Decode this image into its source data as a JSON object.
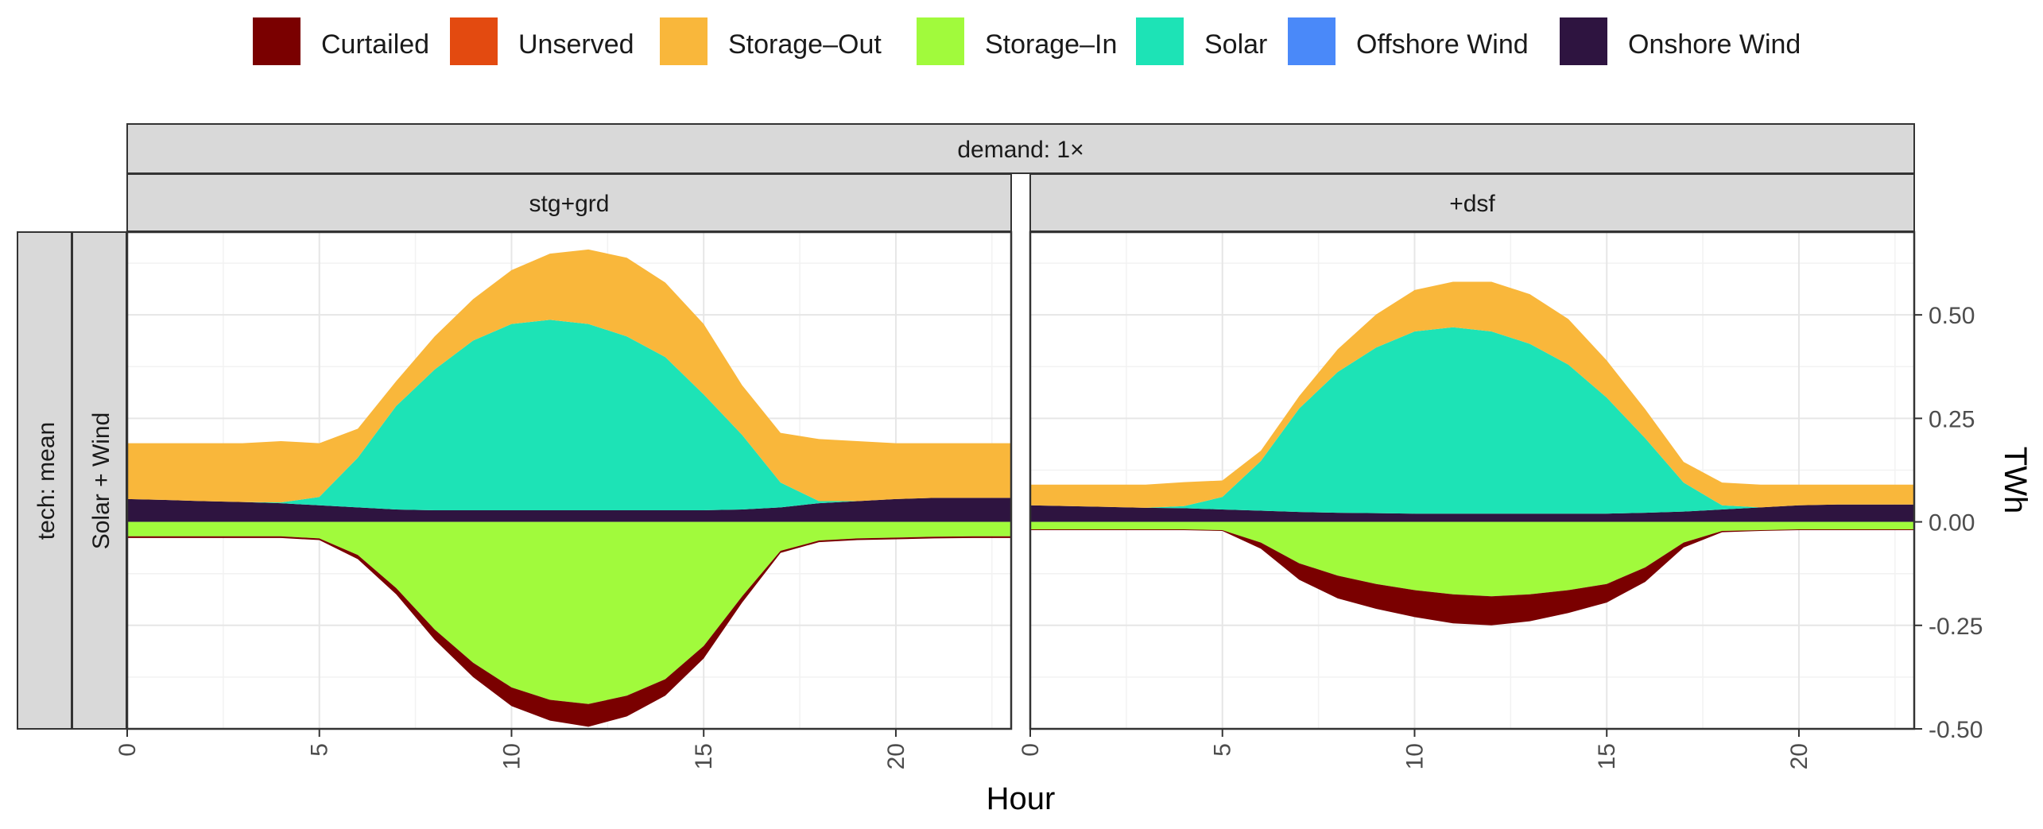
{
  "chart_data": {
    "type": "area",
    "title": "",
    "xlabel": "Hour",
    "ylabel": "TWh",
    "xlim": [
      0,
      23
    ],
    "ylim": [
      -0.5,
      0.7
    ],
    "x_ticks": [
      0,
      5,
      10,
      15,
      20
    ],
    "x_tick_labels": [
      "0",
      "5",
      "10",
      "15",
      "20"
    ],
    "y_ticks": [
      -0.5,
      -0.25,
      0,
      0.25,
      0.5
    ],
    "y_tick_labels": [
      "-0.50",
      "-0.25",
      "0.00",
      "0.25",
      "0.50"
    ],
    "grid": true,
    "legend_position": "top",
    "legend": [
      {
        "name": "Curtailed",
        "color": "#7a0000"
      },
      {
        "name": "Unserved",
        "color": "#e34a10"
      },
      {
        "name": "Storage–Out",
        "color": "#f9b73b"
      },
      {
        "name": "Storage–In",
        "color": "#a1fa3c"
      },
      {
        "name": "Solar",
        "color": "#1de3b6"
      },
      {
        "name": "Offshore Wind",
        "color": "#4a89f9"
      },
      {
        "name": "Onshore Wind",
        "color": "#2e1440"
      }
    ],
    "facet_top_strip": "demand: 1×",
    "facet_left_strip_outer": "tech: mean",
    "facet_left_strip_inner": "Solar + Wind",
    "x": [
      0,
      1,
      2,
      3,
      4,
      5,
      6,
      7,
      8,
      9,
      10,
      11,
      12,
      13,
      14,
      15,
      16,
      17,
      18,
      19,
      20,
      21,
      22,
      23
    ],
    "panels": [
      {
        "label": "stg+grd",
        "series": [
          {
            "name": "Onshore Wind",
            "values": [
              0.055,
              0.053,
              0.05,
              0.048,
              0.045,
              0.04,
              0.035,
              0.03,
              0.028,
              0.028,
              0.028,
              0.028,
              0.028,
              0.028,
              0.028,
              0.028,
              0.03,
              0.035,
              0.045,
              0.05,
              0.055,
              0.058,
              0.058,
              0.058
            ]
          },
          {
            "name": "Offshore Wind",
            "values": [
              0,
              0,
              0,
              0,
              0,
              0,
              0,
              0,
              0,
              0,
              0,
              0,
              0,
              0,
              0,
              0,
              0,
              0,
              0,
              0,
              0,
              0,
              0,
              0
            ]
          },
          {
            "name": "Solar",
            "values": [
              0,
              0,
              0,
              0,
              0.002,
              0.02,
              0.12,
              0.25,
              0.34,
              0.41,
              0.45,
              0.46,
              0.45,
              0.42,
              0.37,
              0.28,
              0.18,
              0.06,
              0.005,
              0,
              0,
              0,
              0,
              0
            ]
          },
          {
            "name": "Storage–Out",
            "values": [
              0.135,
              0.137,
              0.14,
              0.142,
              0.148,
              0.13,
              0.07,
              0.06,
              0.08,
              0.1,
              0.13,
              0.16,
              0.18,
              0.19,
              0.18,
              0.17,
              0.12,
              0.12,
              0.15,
              0.145,
              0.135,
              0.132,
              0.132,
              0.132
            ]
          },
          {
            "name": "Unserved",
            "values": [
              0,
              0,
              0,
              0,
              0,
              0,
              0,
              0,
              0,
              0,
              0,
              0,
              0,
              0,
              0,
              0,
              0,
              0,
              0,
              0,
              0,
              0,
              0,
              0
            ]
          },
          {
            "name": "Storage–In",
            "values": [
              -0.035,
              -0.035,
              -0.035,
              -0.035,
              -0.035,
              -0.04,
              -0.08,
              -0.16,
              -0.26,
              -0.34,
              -0.4,
              -0.43,
              -0.44,
              -0.42,
              -0.38,
              -0.3,
              -0.18,
              -0.07,
              -0.045,
              -0.04,
              -0.038,
              -0.036,
              -0.035,
              -0.035
            ]
          },
          {
            "name": "Curtailed",
            "values": [
              -0.004,
              -0.004,
              -0.004,
              -0.004,
              -0.004,
              -0.004,
              -0.01,
              -0.015,
              -0.025,
              -0.035,
              -0.045,
              -0.05,
              -0.055,
              -0.05,
              -0.04,
              -0.03,
              -0.015,
              -0.005,
              -0.004,
              -0.004,
              -0.004,
              -0.004,
              -0.004,
              -0.004
            ]
          }
        ]
      },
      {
        "label": "+dsf",
        "series": [
          {
            "name": "Onshore Wind",
            "values": [
              0.04,
              0.038,
              0.036,
              0.034,
              0.033,
              0.03,
              0.027,
              0.024,
              0.022,
              0.021,
              0.02,
              0.02,
              0.02,
              0.02,
              0.02,
              0.02,
              0.022,
              0.025,
              0.03,
              0.035,
              0.04,
              0.042,
              0.042,
              0.042
            ]
          },
          {
            "name": "Offshore Wind",
            "values": [
              0,
              0,
              0,
              0,
              0,
              0,
              0,
              0,
              0,
              0,
              0,
              0,
              0,
              0,
              0,
              0,
              0,
              0,
              0,
              0,
              0,
              0,
              0,
              0
            ]
          },
          {
            "name": "Solar",
            "values": [
              0,
              0,
              0,
              0,
              0.005,
              0.03,
              0.12,
              0.25,
              0.34,
              0.4,
              0.44,
              0.45,
              0.44,
              0.41,
              0.36,
              0.28,
              0.18,
              0.07,
              0.01,
              0,
              0,
              0,
              0,
              0
            ]
          },
          {
            "name": "Storage–Out",
            "values": [
              0.05,
              0.052,
              0.054,
              0.056,
              0.058,
              0.04,
              0.025,
              0.03,
              0.055,
              0.08,
              0.1,
              0.11,
              0.12,
              0.12,
              0.11,
              0.09,
              0.07,
              0.05,
              0.055,
              0.055,
              0.05,
              0.048,
              0.048,
              0.048
            ]
          },
          {
            "name": "Unserved",
            "values": [
              0,
              0,
              0,
              0,
              0,
              0,
              0,
              0,
              0,
              0,
              0,
              0,
              0,
              0,
              0,
              0,
              0,
              0,
              0,
              0,
              0,
              0,
              0,
              0
            ]
          },
          {
            "name": "Storage–In",
            "values": [
              -0.018,
              -0.018,
              -0.018,
              -0.018,
              -0.018,
              -0.02,
              -0.05,
              -0.1,
              -0.13,
              -0.15,
              -0.165,
              -0.175,
              -0.18,
              -0.175,
              -0.165,
              -0.15,
              -0.11,
              -0.05,
              -0.022,
              -0.02,
              -0.018,
              -0.018,
              -0.018,
              -0.018
            ]
          },
          {
            "name": "Curtailed",
            "values": [
              -0.002,
              -0.002,
              -0.002,
              -0.002,
              -0.002,
              -0.002,
              -0.015,
              -0.04,
              -0.055,
              -0.06,
              -0.065,
              -0.07,
              -0.07,
              -0.065,
              -0.055,
              -0.045,
              -0.035,
              -0.012,
              -0.003,
              -0.002,
              -0.002,
              -0.002,
              -0.002,
              -0.002
            ]
          }
        ]
      }
    ]
  }
}
